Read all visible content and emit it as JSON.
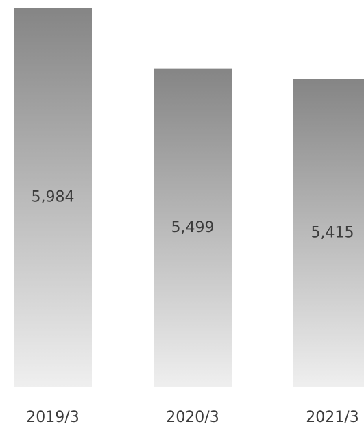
{
  "chart_data": {
    "type": "bar",
    "categories": [
      "2019/3",
      "2020/3",
      "2021/3"
    ],
    "values": [
      5984,
      5499,
      5415
    ],
    "value_labels": [
      "5,984",
      "5,499",
      "5,415"
    ],
    "title": "",
    "xlabel": "",
    "ylabel": "",
    "ylim": [
      2960,
      6000
    ],
    "grid": false,
    "legend": "none",
    "colors": {
      "bar_top": "#858585",
      "bar_bottom": "#efefef",
      "text": "#3b3b3b"
    }
  }
}
